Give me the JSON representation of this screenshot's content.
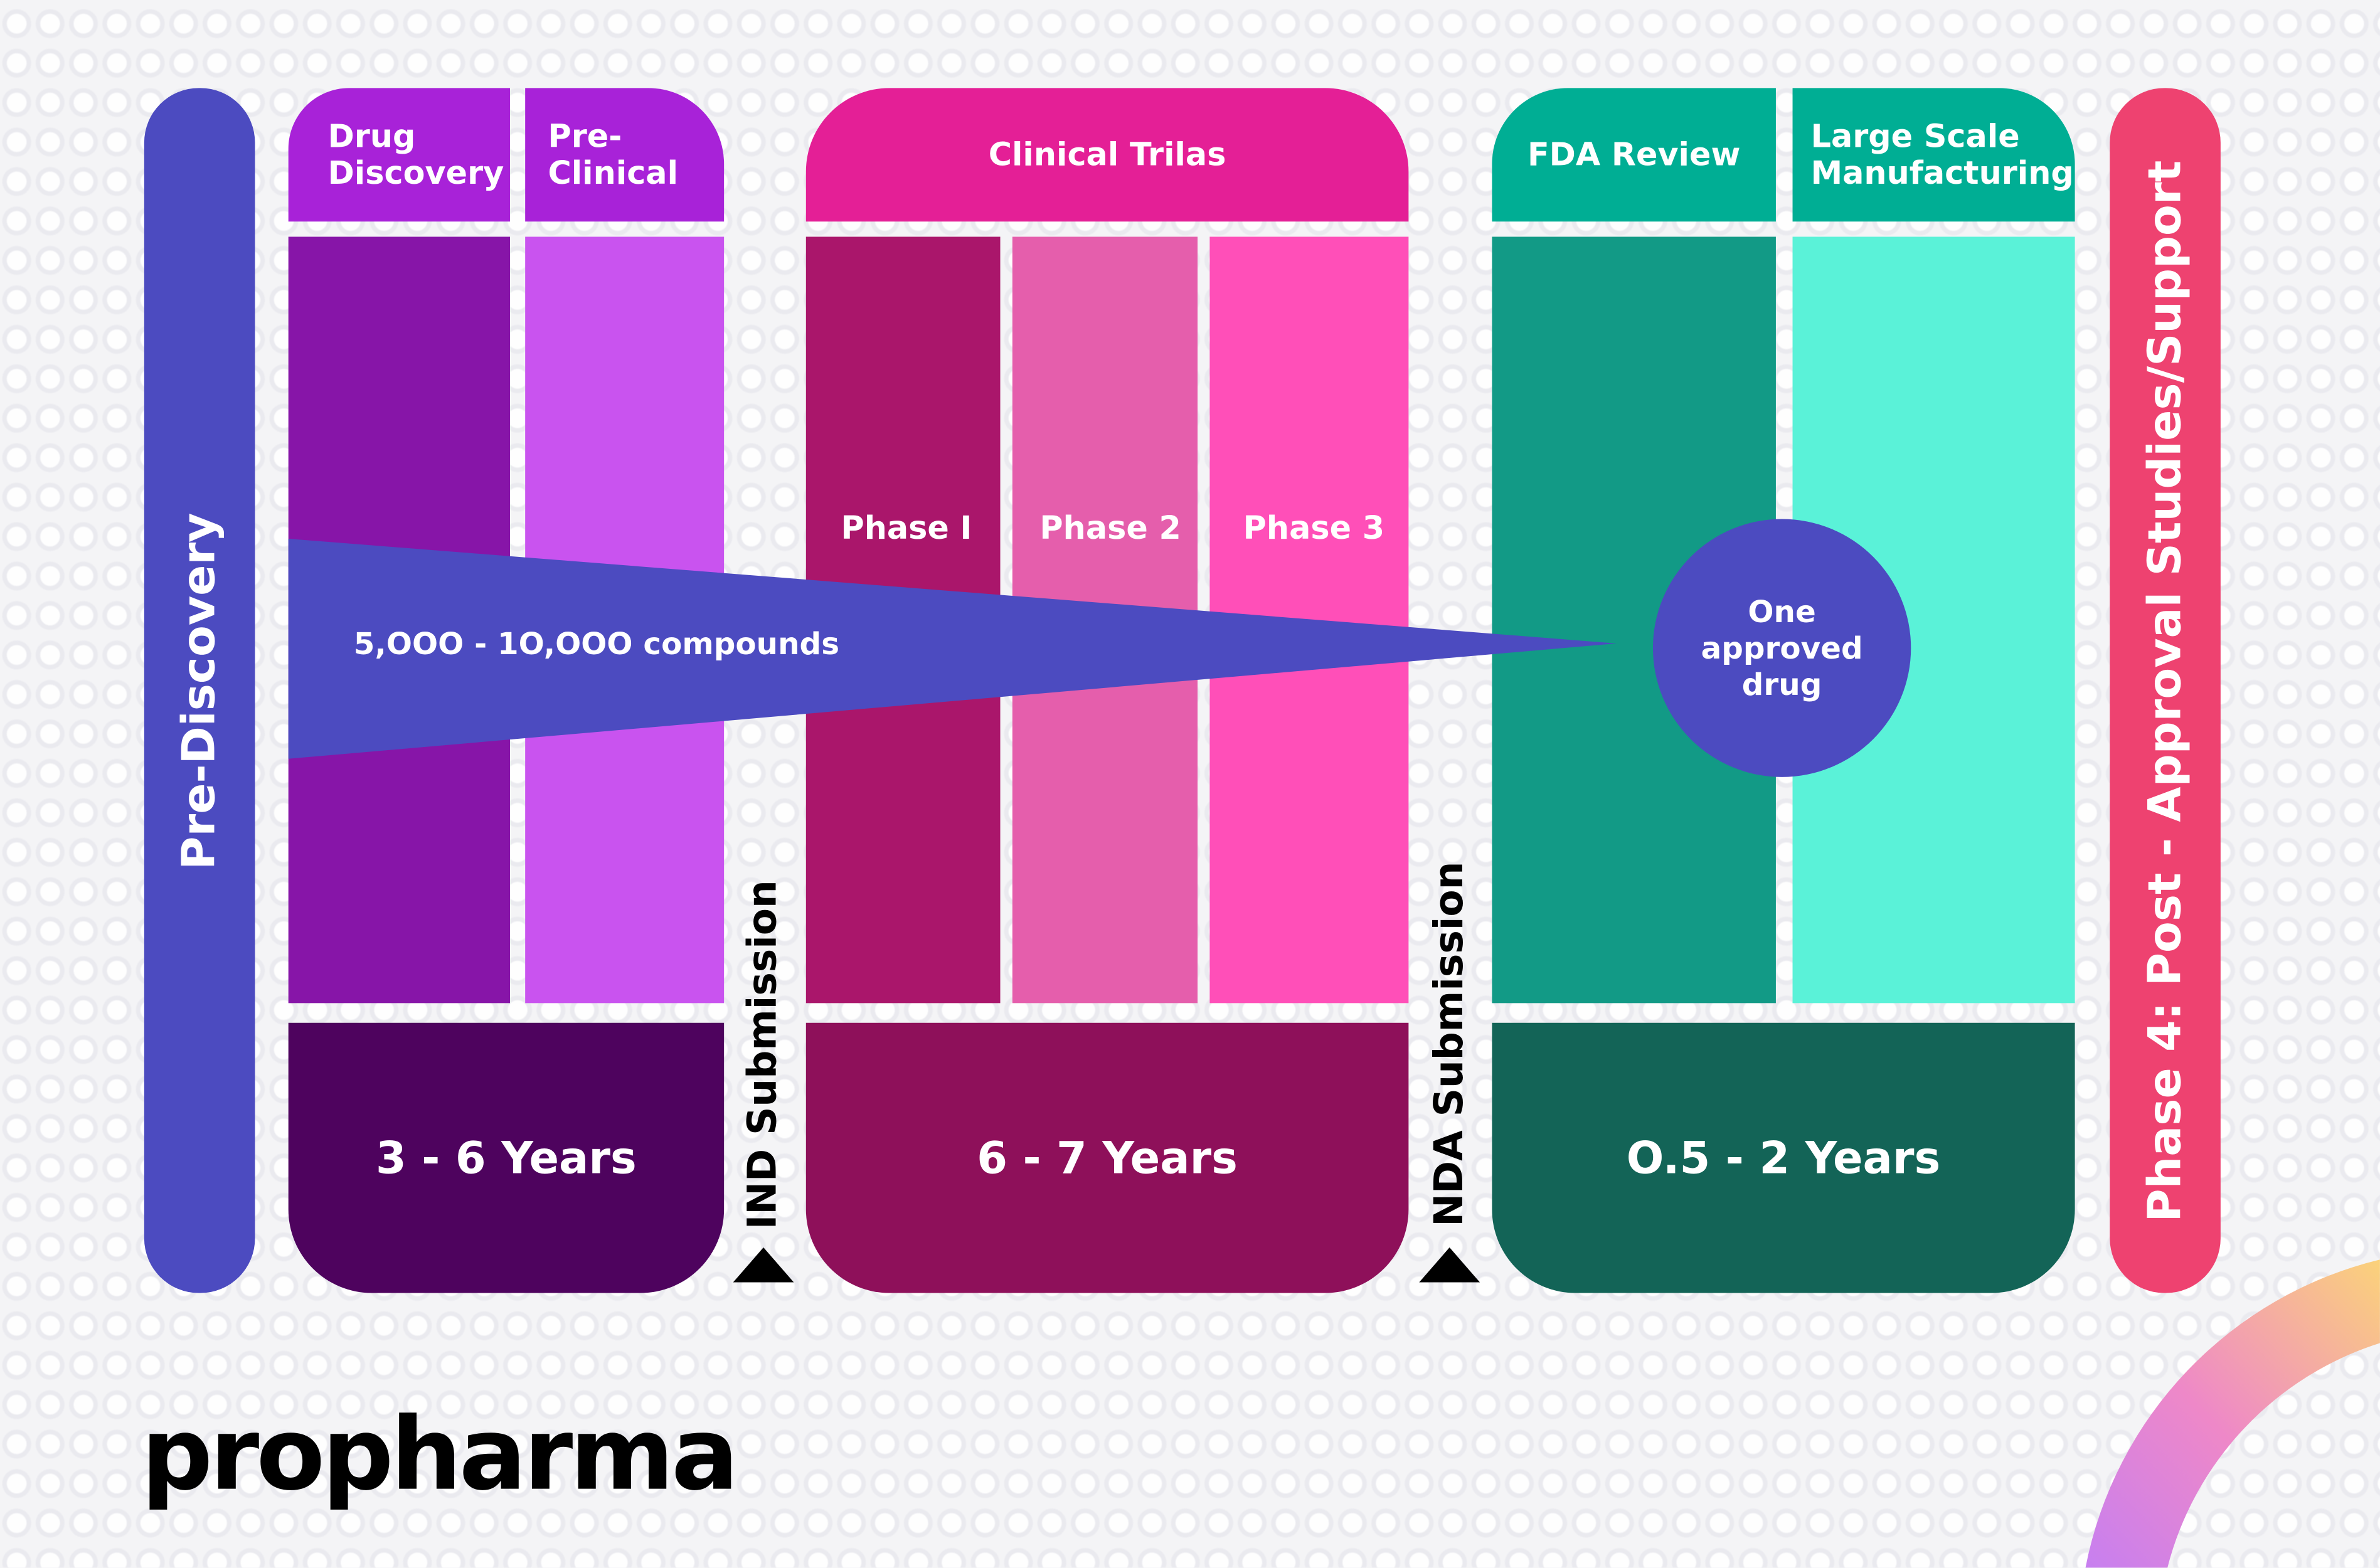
{
  "colors": {
    "pre_discovery": "#4c4bc0",
    "drug_discovery_header": "#a822d8",
    "pre_clinical_header": "#a822d8",
    "drug_discovery_body": "#8715a8",
    "pre_clinical_body": "#c953ef",
    "early_years": "#4e035e",
    "clinical_header": "#e41f96",
    "phase1": "#aa166b",
    "phase2": "#e55eac",
    "phase3": "#ff4fb8",
    "clinical_years": "#8e105a",
    "fda_header": "#00ae94",
    "fda_body": "#129a86",
    "manufacturing_body": "#5af2d8",
    "late_years": "#136457",
    "phase4": "#ee4270",
    "funnel": "#4c4bc0"
  },
  "pre_discovery": "Pre-Discovery",
  "drug_discovery": "Drug Discovery",
  "pre_clinical": "Pre-Clinical",
  "clinical_trials": "Clinical Trilas",
  "phases": [
    "Phase I",
    "Phase 2",
    "Phase 3"
  ],
  "fda_review": "FDA Review",
  "manufacturing": "Large Scale Manufacturing",
  "durations": [
    "3 - 6 Years",
    "6 - 7 Years",
    "O.5 - 2 Years"
  ],
  "ind_submission": "IND Submission",
  "nda_submission": "NDA Submission",
  "phase4": "Phase 4: Post - Approval Studies/Support",
  "funnel_label": "5,OOO - 1O,OOO compounds",
  "result_label": "One approved drug",
  "logo": "propharma"
}
